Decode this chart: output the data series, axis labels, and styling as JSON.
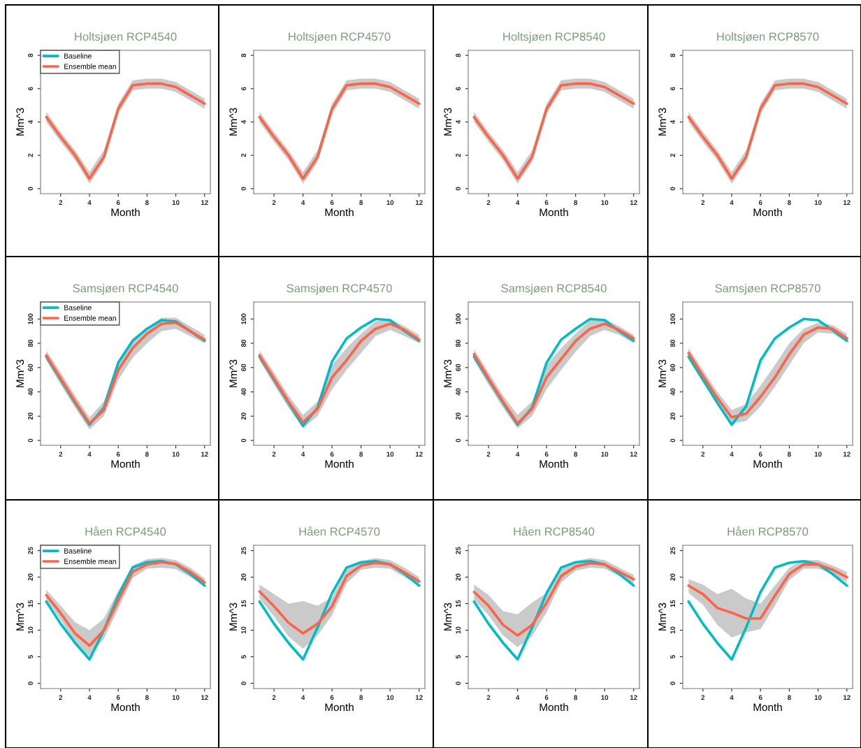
{
  "chart_data": [
    {
      "type": "line",
      "title": "Holtsjøen RCP4540",
      "xlabel": "Month",
      "ylabel": "Mm^3",
      "x": [
        1,
        2,
        3,
        4,
        5,
        6,
        7,
        8,
        9,
        10,
        11,
        12
      ],
      "xlim": [
        0.6,
        12.4
      ],
      "xticks": [
        2,
        4,
        6,
        8,
        10,
        12
      ],
      "ylim": [
        -0.3,
        8.3
      ],
      "yticks": [
        0,
        2,
        4,
        6,
        8
      ],
      "legend": "top left",
      "series": [
        {
          "name": "Baseline",
          "color": "#00bcc8",
          "values": [
            null,
            null,
            null,
            null,
            null,
            null,
            null,
            null,
            null,
            null,
            null,
            null
          ]
        },
        {
          "name": "Ensemble mean",
          "color": "#ff6347",
          "values": [
            4.3,
            3.1,
            2.0,
            0.6,
            1.9,
            4.8,
            6.2,
            6.3,
            6.3,
            6.1,
            5.6,
            5.1
          ],
          "lower": [
            4.0,
            2.8,
            1.7,
            0.3,
            1.6,
            4.5,
            5.9,
            6.0,
            6.0,
            5.8,
            5.3,
            4.8
          ],
          "upper": [
            4.6,
            3.4,
            2.3,
            1.0,
            2.3,
            5.1,
            6.5,
            6.6,
            6.6,
            6.4,
            5.9,
            5.4
          ]
        }
      ]
    },
    {
      "type": "line",
      "title": "Holtsjøen RCP4570",
      "xlabel": "Month",
      "ylabel": "Mm^3",
      "x": [
        1,
        2,
        3,
        4,
        5,
        6,
        7,
        8,
        9,
        10,
        11,
        12
      ],
      "xlim": [
        0.6,
        12.4
      ],
      "xticks": [
        2,
        4,
        6,
        8,
        10,
        12
      ],
      "ylim": [
        -0.3,
        8.3
      ],
      "yticks": [
        0,
        2,
        4,
        6,
        8
      ],
      "series": [
        {
          "color": "#00bcc8",
          "values": [
            null,
            null,
            null,
            null,
            null,
            null,
            null,
            null,
            null,
            null,
            null,
            null
          ]
        },
        {
          "color": "#ff6347",
          "values": [
            4.3,
            3.1,
            2.0,
            0.6,
            1.9,
            4.8,
            6.2,
            6.3,
            6.3,
            6.1,
            5.6,
            5.1
          ],
          "lower": [
            4.0,
            2.8,
            1.7,
            0.3,
            1.6,
            4.5,
            5.9,
            6.0,
            6.0,
            5.8,
            5.3,
            4.8
          ],
          "upper": [
            4.6,
            3.4,
            2.3,
            1.0,
            2.3,
            5.1,
            6.5,
            6.6,
            6.6,
            6.4,
            5.9,
            5.4
          ]
        }
      ]
    },
    {
      "type": "line",
      "title": "Holtsjøen RCP8540",
      "xlabel": "Month",
      "ylabel": "Mm^3",
      "x": [
        1,
        2,
        3,
        4,
        5,
        6,
        7,
        8,
        9,
        10,
        11,
        12
      ],
      "xlim": [
        0.6,
        12.4
      ],
      "xticks": [
        2,
        4,
        6,
        8,
        10,
        12
      ],
      "ylim": [
        -0.3,
        8.3
      ],
      "yticks": [
        0,
        2,
        4,
        6,
        8
      ],
      "series": [
        {
          "color": "#00bcc8",
          "values": [
            null,
            null,
            null,
            null,
            null,
            null,
            null,
            null,
            null,
            null,
            null,
            null
          ]
        },
        {
          "color": "#ff6347",
          "values": [
            4.3,
            3.1,
            2.0,
            0.6,
            1.9,
            4.8,
            6.2,
            6.3,
            6.3,
            6.1,
            5.6,
            5.1
          ],
          "lower": [
            4.0,
            2.8,
            1.7,
            0.3,
            1.6,
            4.5,
            5.9,
            6.0,
            6.0,
            5.8,
            5.3,
            4.8
          ],
          "upper": [
            4.6,
            3.4,
            2.3,
            1.0,
            2.3,
            5.1,
            6.5,
            6.6,
            6.6,
            6.4,
            5.9,
            5.4
          ]
        }
      ]
    },
    {
      "type": "line",
      "title": "Holtsjøen RCP8570",
      "xlabel": "Month",
      "ylabel": "Mm^3",
      "x": [
        1,
        2,
        3,
        4,
        5,
        6,
        7,
        8,
        9,
        10,
        11,
        12
      ],
      "xlim": [
        0.6,
        12.4
      ],
      "xticks": [
        2,
        4,
        6,
        8,
        10,
        12
      ],
      "ylim": [
        -0.3,
        8.3
      ],
      "yticks": [
        0,
        2,
        4,
        6,
        8
      ],
      "series": [
        {
          "color": "#00bcc8",
          "values": [
            null,
            null,
            null,
            null,
            null,
            null,
            null,
            null,
            null,
            null,
            null,
            null
          ]
        },
        {
          "color": "#ff6347",
          "values": [
            4.3,
            3.1,
            2.0,
            0.6,
            1.9,
            4.8,
            6.2,
            6.3,
            6.3,
            6.1,
            5.6,
            5.1
          ],
          "lower": [
            4.0,
            2.8,
            1.7,
            0.3,
            1.6,
            4.5,
            5.9,
            6.0,
            6.0,
            5.8,
            5.3,
            4.8
          ],
          "upper": [
            4.6,
            3.4,
            2.3,
            1.0,
            2.3,
            5.1,
            6.5,
            6.6,
            6.6,
            6.4,
            5.9,
            5.4
          ]
        }
      ]
    },
    {
      "type": "line",
      "title": "Samsjøen RCP4540",
      "xlabel": "Month",
      "ylabel": "Mm^3",
      "x": [
        1,
        2,
        3,
        4,
        5,
        6,
        7,
        8,
        9,
        10,
        11,
        12
      ],
      "xlim": [
        0.6,
        12.4
      ],
      "xticks": [
        2,
        4,
        6,
        8,
        10,
        12
      ],
      "ylim": [
        -4,
        114
      ],
      "yticks": [
        0,
        20,
        40,
        60,
        80,
        100
      ],
      "legend": "top left",
      "series": [
        {
          "name": "Baseline",
          "color": "#00bcc8",
          "values": [
            69,
            50,
            31,
            13,
            27,
            64,
            82,
            92,
            99,
            98,
            90,
            82
          ]
        },
        {
          "name": "Ensemble mean",
          "color": "#ff6347",
          "values": [
            70,
            51,
            32,
            14,
            25,
            58,
            76,
            88,
            96,
            97,
            90,
            83
          ],
          "lower": [
            66,
            46,
            27,
            9,
            20,
            50,
            68,
            80,
            90,
            92,
            86,
            80
          ],
          "upper": [
            74,
            56,
            37,
            19,
            32,
            66,
            84,
            93,
            101,
            101,
            94,
            87
          ]
        }
      ]
    },
    {
      "type": "line",
      "title": "Samsjøen RCP4570",
      "xlabel": "Month",
      "ylabel": "Mm^3",
      "x": [
        1,
        2,
        3,
        4,
        5,
        6,
        7,
        8,
        9,
        10,
        11,
        12
      ],
      "xlim": [
        0.6,
        12.4
      ],
      "xticks": [
        2,
        4,
        6,
        8,
        10,
        12
      ],
      "ylim": [
        -4,
        114
      ],
      "yticks": [
        0,
        20,
        40,
        60,
        80,
        100
      ],
      "series": [
        {
          "color": "#00bcc8",
          "values": [
            69,
            50,
            31,
            12,
            27,
            65,
            84,
            93,
            100,
            99,
            90,
            82
          ]
        },
        {
          "color": "#ff6347",
          "values": [
            70,
            51,
            32,
            15,
            26,
            52,
            66,
            82,
            92,
            96,
            91,
            83
          ],
          "lower": [
            66,
            46,
            27,
            10,
            20,
            42,
            58,
            72,
            86,
            91,
            86,
            80
          ],
          "upper": [
            74,
            56,
            37,
            21,
            32,
            62,
            76,
            88,
            98,
            100,
            94,
            87
          ]
        }
      ]
    },
    {
      "type": "line",
      "title": "Samsjøen RCP8540",
      "xlabel": "Month",
      "ylabel": "Mm^3",
      "x": [
        1,
        2,
        3,
        4,
        5,
        6,
        7,
        8,
        9,
        10,
        11,
        12
      ],
      "xlim": [
        0.6,
        12.4
      ],
      "xticks": [
        2,
        4,
        6,
        8,
        10,
        12
      ],
      "ylim": [
        -4,
        114
      ],
      "yticks": [
        0,
        20,
        40,
        60,
        80,
        100
      ],
      "series": [
        {
          "color": "#00bcc8",
          "values": [
            69,
            50,
            31,
            13,
            27,
            64,
            83,
            92,
            100,
            99,
            90,
            82
          ]
        },
        {
          "color": "#ff6347",
          "values": [
            71,
            51,
            32,
            14,
            26,
            52,
            67,
            82,
            92,
            96,
            91,
            84
          ],
          "lower": [
            66,
            46,
            27,
            10,
            20,
            42,
            58,
            73,
            86,
            91,
            87,
            80
          ],
          "upper": [
            75,
            56,
            37,
            21,
            32,
            62,
            76,
            88,
            99,
            100,
            94,
            87
          ]
        }
      ]
    },
    {
      "type": "line",
      "title": "Samsjøen RCP8570",
      "xlabel": "Month",
      "ylabel": "Mm^3",
      "x": [
        1,
        2,
        3,
        4,
        5,
        6,
        7,
        8,
        9,
        10,
        11,
        12
      ],
      "xlim": [
        0.6,
        12.4
      ],
      "xticks": [
        2,
        4,
        6,
        8,
        10,
        12
      ],
      "ylim": [
        -4,
        114
      ],
      "yticks": [
        0,
        20,
        40,
        60,
        80,
        100
      ],
      "series": [
        {
          "color": "#00bcc8",
          "values": [
            69,
            50,
            31,
            13,
            28,
            66,
            84,
            93,
            100,
            99,
            91,
            82
          ]
        },
        {
          "color": "#ff6347",
          "values": [
            72,
            53,
            35,
            19,
            22,
            36,
            52,
            71,
            87,
            93,
            92,
            84
          ],
          "lower": [
            67,
            48,
            30,
            14,
            16,
            28,
            44,
            62,
            80,
            89,
            88,
            81
          ],
          "upper": [
            76,
            58,
            40,
            25,
            30,
            45,
            62,
            80,
            92,
            97,
            95,
            88
          ]
        }
      ]
    },
    {
      "type": "line",
      "title": "Håen RCP4540",
      "xlabel": "Month",
      "ylabel": "Mm^3",
      "x": [
        1,
        2,
        3,
        4,
        5,
        6,
        7,
        8,
        9,
        10,
        11,
        12
      ],
      "xlim": [
        0.6,
        12.4
      ],
      "xticks": [
        2,
        4,
        6,
        8,
        10,
        12
      ],
      "ylim": [
        -1,
        26
      ],
      "yticks": [
        0,
        5,
        10,
        15,
        20,
        25
      ],
      "legend": "top left",
      "series": [
        {
          "name": "Baseline",
          "color": "#00bcc8",
          "values": [
            15.4,
            11.2,
            7.6,
            4.5,
            10,
            16.5,
            21.8,
            22.8,
            23.0,
            22.4,
            20.6,
            18.4
          ]
        },
        {
          "name": "Ensemble mean",
          "color": "#ff6347",
          "values": [
            16.6,
            13.2,
            9.4,
            7.1,
            10,
            15.6,
            21.0,
            22.4,
            22.8,
            22.5,
            21.0,
            19.0
          ],
          "lower": [
            15.8,
            12.0,
            7.6,
            5.0,
            8.4,
            14.0,
            19.8,
            21.6,
            21.8,
            21.5,
            20.0,
            18.4
          ],
          "upper": [
            17.6,
            14.6,
            11.5,
            10.0,
            12.2,
            17.4,
            22.2,
            23.4,
            23.6,
            23.2,
            21.8,
            19.8
          ]
        }
      ]
    },
    {
      "type": "line",
      "title": "Håen RCP4570",
      "xlabel": "Month",
      "ylabel": "Mm^3",
      "x": [
        1,
        2,
        3,
        4,
        5,
        6,
        7,
        8,
        9,
        10,
        11,
        12
      ],
      "xlim": [
        0.6,
        12.4
      ],
      "xticks": [
        2,
        4,
        6,
        8,
        10,
        12
      ],
      "ylim": [
        -1,
        26
      ],
      "yticks": [
        0,
        5,
        10,
        15,
        20,
        25
      ],
      "series": [
        {
          "color": "#00bcc8",
          "values": [
            15.4,
            11.2,
            7.6,
            4.5,
            10.5,
            17.0,
            21.8,
            22.8,
            23.0,
            22.4,
            20.6,
            18.4
          ]
        },
        {
          "color": "#ff6347",
          "values": [
            17.3,
            14.5,
            11.4,
            9.4,
            11.2,
            14.5,
            20.2,
            22.2,
            22.7,
            22.4,
            20.9,
            19.2
          ],
          "lower": [
            16.0,
            12.6,
            8.8,
            6.5,
            9.0,
            12.8,
            18.8,
            21.4,
            21.8,
            21.6,
            20.0,
            18.4
          ],
          "upper": [
            18.6,
            16.8,
            15.0,
            15.5,
            14.6,
            16.2,
            21.6,
            23.0,
            23.6,
            23.2,
            21.8,
            20.0
          ]
        }
      ]
    },
    {
      "type": "line",
      "title": "Håen RCP8540",
      "xlabel": "Month",
      "ylabel": "Mm^3",
      "x": [
        1,
        2,
        3,
        4,
        5,
        6,
        7,
        8,
        9,
        10,
        11,
        12
      ],
      "xlim": [
        0.6,
        12.4
      ],
      "xticks": [
        2,
        4,
        6,
        8,
        10,
        12
      ],
      "ylim": [
        -1,
        26
      ],
      "yticks": [
        0,
        5,
        10,
        15,
        20,
        25
      ],
      "series": [
        {
          "color": "#00bcc8",
          "values": [
            15.4,
            11.2,
            7.6,
            4.5,
            10.5,
            17.0,
            21.8,
            22.8,
            23.0,
            22.4,
            20.6,
            18.4
          ]
        },
        {
          "color": "#ff6347",
          "values": [
            17.2,
            14.6,
            11.0,
            9.0,
            11.0,
            15.2,
            20.2,
            22.0,
            22.6,
            22.4,
            21.0,
            19.6
          ],
          "lower": [
            15.8,
            12.8,
            9.0,
            6.8,
            8.8,
            13.4,
            19.0,
            21.2,
            21.8,
            21.6,
            20.2,
            18.8
          ],
          "upper": [
            18.6,
            16.6,
            13.6,
            13.0,
            15.2,
            17.0,
            21.8,
            23.0,
            23.6,
            23.2,
            21.8,
            20.4
          ]
        }
      ]
    },
    {
      "type": "line",
      "title": "Håen RCP8570",
      "xlabel": "Month",
      "ylabel": "Mm^3",
      "x": [
        1,
        2,
        3,
        4,
        5,
        6,
        7,
        8,
        9,
        10,
        11,
        12
      ],
      "xlim": [
        0.6,
        12.4
      ],
      "xticks": [
        2,
        4,
        6,
        8,
        10,
        12
      ],
      "ylim": [
        -1,
        26
      ],
      "yticks": [
        0,
        5,
        10,
        15,
        20,
        25
      ],
      "series": [
        {
          "color": "#00bcc8",
          "values": [
            15.4,
            11.2,
            7.6,
            4.5,
            10.5,
            17.2,
            21.8,
            22.7,
            23.0,
            22.4,
            20.6,
            18.4
          ]
        },
        {
          "color": "#ff6347",
          "values": [
            18.4,
            16.8,
            14.2,
            13.3,
            12.2,
            12.2,
            16.5,
            20.6,
            22.4,
            22.4,
            21.4,
            20.0
          ],
          "lower": [
            17.0,
            14.8,
            11.0,
            8.6,
            9.6,
            10.2,
            14.6,
            19.4,
            21.6,
            21.6,
            20.6,
            19.0
          ],
          "upper": [
            19.6,
            18.6,
            16.8,
            17.8,
            16.0,
            15.0,
            18.4,
            21.8,
            23.2,
            23.2,
            22.2,
            21.0
          ]
        }
      ]
    }
  ]
}
